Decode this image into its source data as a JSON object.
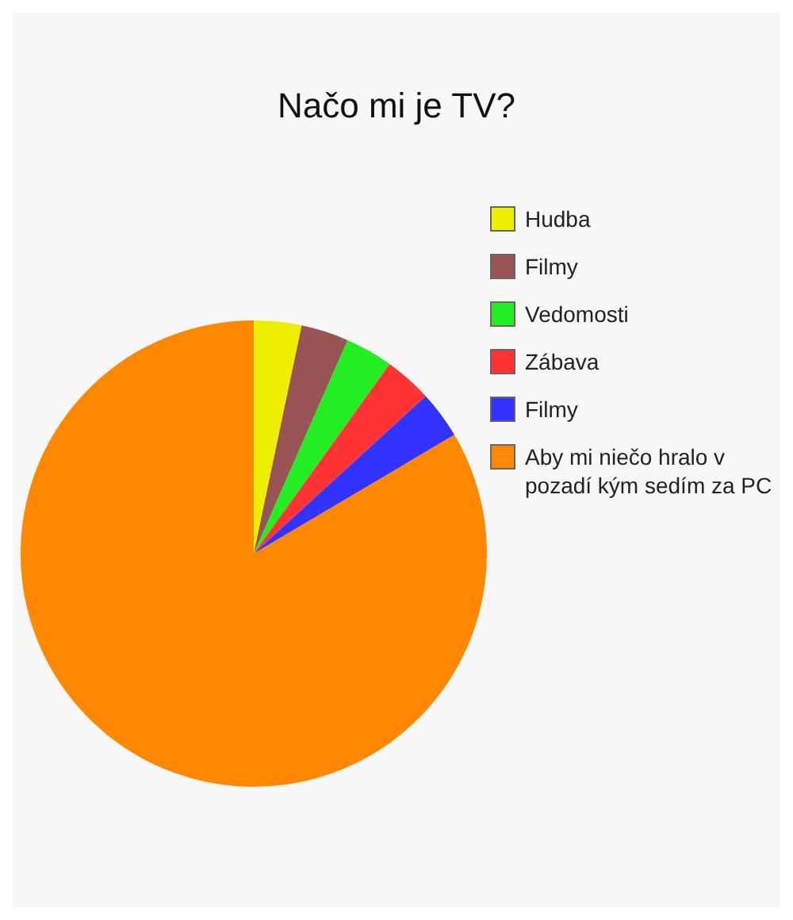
{
  "chart_data": {
    "type": "pie",
    "title": "Načo mi je TV?",
    "categories": [
      "Hudba",
      "Filmy",
      "Vedomosti",
      "Zábava",
      "Filmy",
      "Aby mi niečo hralo v pozadí kým sedím za PC"
    ],
    "values": [
      3.3,
      3.3,
      3.3,
      3.3,
      3.3,
      83.5
    ],
    "colors": [
      "#eeee00",
      "#995555",
      "#22ee22",
      "#ff3333",
      "#3333ff",
      "#ff8800"
    ],
    "legend": "right"
  }
}
